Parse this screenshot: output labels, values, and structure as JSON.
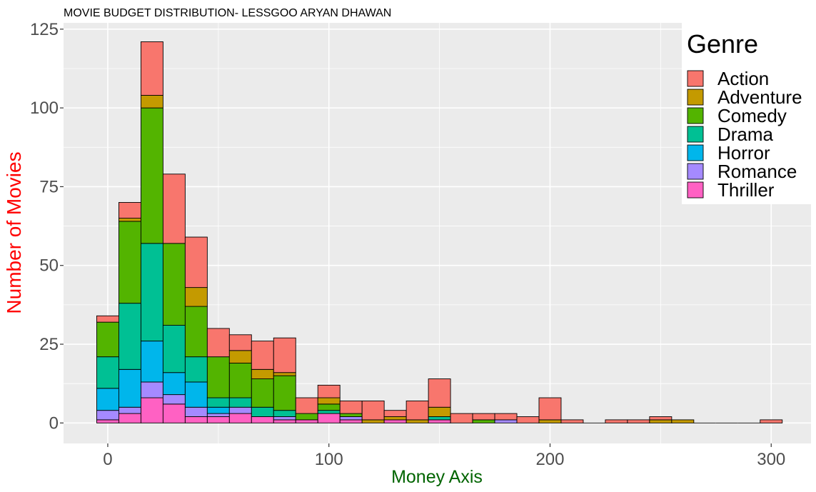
{
  "chart_data": {
    "type": "bar",
    "subtype": "stacked histogram",
    "title": "MOVIE BUDGET DISTRIBUTION- LESSGOO ARYAN DHAWAN",
    "xlabel": "Money Axis",
    "ylabel": "Number of Movies",
    "xlim": [
      -20,
      318
    ],
    "ylim": [
      -6.5,
      127
    ],
    "x_ticks": [
      0,
      100,
      200,
      300
    ],
    "y_ticks": [
      0,
      25,
      50,
      75,
      100,
      125
    ],
    "bin_width": 10,
    "bin_centers": [
      0,
      10,
      20,
      30,
      40,
      50,
      60,
      70,
      80,
      90,
      100,
      110,
      120,
      130,
      140,
      150,
      160,
      170,
      180,
      190,
      200,
      210,
      220,
      230,
      240,
      250,
      260,
      270,
      280,
      290,
      300
    ],
    "legend": {
      "title": "Genre",
      "position": "top-right"
    },
    "series": [
      {
        "name": "Thriller",
        "color": "#FF61C3",
        "values": [
          1,
          3,
          8,
          6,
          2,
          2,
          3,
          2,
          1,
          1,
          3,
          1,
          0,
          1,
          0,
          1,
          0,
          0,
          0,
          0,
          0,
          0,
          0,
          0,
          0,
          0,
          0,
          0,
          0,
          0,
          0
        ]
      },
      {
        "name": "Romance",
        "color": "#A58AFF",
        "values": [
          3,
          2,
          5,
          3,
          3,
          1,
          2,
          0,
          1,
          0,
          0,
          1,
          0,
          0,
          0,
          0,
          0,
          0,
          1,
          0,
          0,
          0,
          0,
          0,
          0,
          0,
          0,
          0,
          0,
          0,
          0
        ]
      },
      {
        "name": "Horror",
        "color": "#00B6EB",
        "values": [
          7,
          12,
          13,
          7,
          8,
          2,
          0,
          0,
          0,
          0,
          0,
          0,
          0,
          0,
          0,
          0,
          0,
          0,
          0,
          0,
          0,
          0,
          0,
          0,
          0,
          0,
          0,
          0,
          0,
          0,
          0
        ]
      },
      {
        "name": "Drama",
        "color": "#00C094",
        "values": [
          10,
          21,
          31,
          15,
          8,
          3,
          3,
          3,
          2,
          0,
          1,
          0,
          0,
          0,
          0,
          1,
          0,
          0,
          0,
          0,
          0,
          0,
          0,
          0,
          0,
          0,
          0,
          0,
          0,
          0,
          0
        ]
      },
      {
        "name": "Comedy",
        "color": "#53B400",
        "values": [
          11,
          26,
          43,
          26,
          16,
          13,
          11,
          9,
          11,
          2,
          2,
          1,
          0,
          0,
          0,
          0,
          0,
          1,
          0,
          0,
          0,
          0,
          0,
          0,
          0,
          0,
          0,
          0,
          0,
          0,
          0
        ]
      },
      {
        "name": "Adventure",
        "color": "#C49A00",
        "values": [
          0,
          1,
          4,
          0,
          6,
          0,
          4,
          3,
          1,
          0,
          2,
          0,
          1,
          1,
          1,
          3,
          0,
          0,
          0,
          0,
          1,
          0,
          0,
          0,
          0,
          1,
          1,
          0,
          0,
          0,
          0
        ]
      },
      {
        "name": "Action",
        "color": "#F8766D",
        "values": [
          2,
          5,
          17,
          22,
          16,
          9,
          5,
          9,
          11,
          5,
          4,
          4,
          6,
          2,
          6,
          9,
          3,
          2,
          2,
          2,
          7,
          1,
          0,
          1,
          1,
          1,
          0,
          0,
          0,
          0,
          1
        ]
      }
    ],
    "grid": true,
    "panel_background": "#EBEBEB",
    "grid_color": "#FFFFFF",
    "bar_border": "#000000",
    "title_color": "#000000",
    "xlabel_color": "#006400",
    "ylabel_color": "#FF0000"
  }
}
